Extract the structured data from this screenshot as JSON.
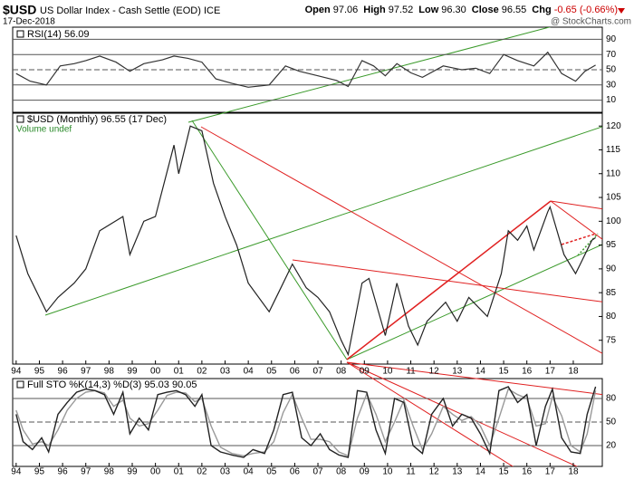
{
  "header": {
    "symbol": "$USD",
    "name": "US Dollar Index - Cash Settle (EOD) ICE",
    "date": "17-Dec-2018",
    "source": "@ StockCharts.com",
    "quote": [
      {
        "label": "Open",
        "value": "97.06"
      },
      {
        "label": "High",
        "value": "97.52"
      },
      {
        "label": "Low",
        "value": "96.30"
      },
      {
        "label": "Close",
        "value": "96.55"
      },
      {
        "label": "Chg",
        "value": "-0.65 (-0.66%)"
      }
    ]
  },
  "chart_data": [
    {
      "type": "line",
      "title": "RSI(14) 56.09",
      "color": "#333333",
      "x": [
        1994.0,
        1994.6,
        1995.3,
        1995.9,
        1996.5,
        1997.0,
        1997.6,
        1998.3,
        1998.9,
        1999.5,
        2000.3,
        2000.8,
        2001.4,
        2002.0,
        2002.6,
        2003.3,
        2004.0,
        2004.9,
        2005.6,
        2006.2,
        2007.0,
        2007.8,
        2008.3,
        2008.9,
        2009.4,
        2009.9,
        2010.4,
        2011.0,
        2011.5,
        2012.4,
        2013.2,
        2013.8,
        2014.4,
        2015.0,
        2015.6,
        2016.3,
        2016.9,
        2017.5,
        2018.1,
        2018.5,
        2018.96
      ],
      "values": [
        45,
        35,
        30,
        55,
        58,
        62,
        68,
        60,
        48,
        58,
        63,
        68,
        65,
        60,
        38,
        32,
        27,
        30,
        55,
        48,
        42,
        36,
        28,
        62,
        55,
        42,
        58,
        46,
        40,
        55,
        50,
        52,
        45,
        70,
        62,
        55,
        73,
        45,
        35,
        48,
        56.09
      ],
      "xlim": [
        1993.85,
        2019.25
      ],
      "ylim": [
        -6,
        106
      ],
      "yticks": [
        90,
        70,
        50,
        30,
        10
      ],
      "grid": true
    },
    {
      "type": "line",
      "title": "$USD (Monthly) 96.55 (17 Dec)",
      "legend": "Volume undef",
      "color": "#222222",
      "x": [
        1994.0,
        1994.5,
        1995.3,
        1995.8,
        1996.5,
        1997.0,
        1997.6,
        1998.6,
        1998.9,
        1999.5,
        2000.0,
        2000.8,
        2001.0,
        2001.5,
        2002.0,
        2002.5,
        2003.0,
        2003.5,
        2004.0,
        2004.9,
        2005.3,
        2005.9,
        2006.5,
        2007.0,
        2007.5,
        2008.0,
        2008.3,
        2008.9,
        2009.2,
        2009.9,
        2010.4,
        2010.9,
        2011.3,
        2011.7,
        2012.5,
        2013.0,
        2013.5,
        2014.3,
        2014.9,
        2015.2,
        2015.6,
        2016.0,
        2016.3,
        2016.9,
        2017.0,
        2017.6,
        2018.1,
        2018.3,
        2018.8,
        2018.96
      ],
      "values": [
        97,
        89,
        81,
        84,
        87,
        90,
        98,
        101,
        93,
        100,
        101,
        116,
        110,
        120,
        119,
        108,
        101,
        95,
        87,
        81,
        85,
        91,
        86,
        84,
        81,
        75,
        72,
        87,
        88,
        76,
        87,
        78,
        74,
        79,
        83,
        79,
        84,
        80,
        89,
        98,
        96,
        99,
        94,
        102,
        103,
        93,
        89,
        91,
        96,
        96.55
      ],
      "xlim": [
        1993.85,
        2019.25
      ],
      "ylim": [
        70,
        122.7
      ],
      "yticks": [
        75,
        80,
        85,
        90,
        95,
        100,
        105,
        110,
        115,
        120
      ],
      "grid": false,
      "xticks": [
        {
          "value": 1994,
          "label": "94"
        },
        {
          "value": 1995,
          "label": "95"
        },
        {
          "value": 1996,
          "label": "96"
        },
        {
          "value": 1997,
          "label": "97"
        },
        {
          "value": 1998,
          "label": "98"
        },
        {
          "value": 1999,
          "label": "99"
        },
        {
          "value": 2000,
          "label": "00"
        },
        {
          "value": 2001,
          "label": "01"
        },
        {
          "value": 2002,
          "label": "02"
        },
        {
          "value": 2003,
          "label": "03"
        },
        {
          "value": 2004,
          "label": "04"
        },
        {
          "value": 2005,
          "label": "05"
        },
        {
          "value": 2006,
          "label": "06"
        },
        {
          "value": 2007,
          "label": "07"
        },
        {
          "value": 2008,
          "label": "08"
        },
        {
          "value": 2009,
          "label": "09"
        },
        {
          "value": 2010,
          "label": "10"
        },
        {
          "value": 2011,
          "label": "11"
        },
        {
          "value": 2012,
          "label": "12"
        },
        {
          "value": 2013,
          "label": "13"
        },
        {
          "value": 2014,
          "label": "14"
        },
        {
          "value": 2015,
          "label": "15"
        },
        {
          "value": 2016,
          "label": "16"
        },
        {
          "value": 2017,
          "label": "17"
        },
        {
          "value": 2018,
          "label": "18"
        }
      ]
    },
    {
      "type": "line",
      "title": "Full STO %K(14,3) %D(3) 95.03 90.05",
      "x": [
        1994.0,
        1994.3,
        1994.7,
        1995.1,
        1995.4,
        1995.8,
        1996.2,
        1996.6,
        1997.0,
        1997.4,
        1997.8,
        1998.2,
        1998.6,
        1998.9,
        1999.3,
        1999.7,
        2000.1,
        2000.5,
        2000.9,
        2001.3,
        2001.7,
        2002.0,
        2002.4,
        2002.8,
        2003.3,
        2003.8,
        2004.2,
        2004.7,
        2005.1,
        2005.5,
        2005.9,
        2006.3,
        2006.7,
        2007.1,
        2007.5,
        2007.9,
        2008.3,
        2008.7,
        2009.1,
        2009.5,
        2009.9,
        2010.3,
        2010.7,
        2011.1,
        2011.5,
        2011.9,
        2012.4,
        2012.8,
        2013.2,
        2013.6,
        2014.0,
        2014.4,
        2014.8,
        2015.2,
        2015.6,
        2016.0,
        2016.4,
        2016.8,
        2017.1,
        2017.5,
        2017.9,
        2018.3,
        2018.6,
        2018.96
      ],
      "series": [
        {
          "color": "#222222",
          "values": [
            60,
            25,
            15,
            30,
            12,
            60,
            75,
            88,
            92,
            90,
            85,
            60,
            88,
            35,
            55,
            40,
            85,
            88,
            90,
            85,
            70,
            85,
            20,
            12,
            8,
            5,
            15,
            10,
            40,
            85,
            88,
            30,
            20,
            35,
            15,
            8,
            5,
            90,
            88,
            40,
            10,
            80,
            75,
            20,
            10,
            60,
            80,
            45,
            60,
            55,
            35,
            10,
            90,
            95,
            75,
            85,
            20,
            70,
            92,
            30,
            12,
            10,
            60,
            95.03
          ]
        },
        {
          "color": "#999999",
          "values": [
            65,
            40,
            22,
            25,
            20,
            40,
            65,
            80,
            88,
            90,
            87,
            70,
            78,
            55,
            45,
            48,
            65,
            84,
            88,
            87,
            76,
            80,
            45,
            18,
            10,
            7,
            10,
            12,
            25,
            62,
            85,
            55,
            28,
            28,
            25,
            12,
            7,
            55,
            86,
            60,
            25,
            50,
            78,
            45,
            15,
            35,
            70,
            60,
            52,
            57,
            45,
            20,
            55,
            92,
            85,
            80,
            45,
            48,
            82,
            58,
            20,
            12,
            35,
            90.05
          ]
        }
      ],
      "xlim": [
        1993.85,
        2019.25
      ],
      "ylim": [
        -6.5,
        105.4
      ],
      "yticks": [
        80,
        50,
        20
      ],
      "grid": true,
      "xticks": [
        {
          "value": 1994,
          "label": "94"
        },
        {
          "value": 1995,
          "label": "95"
        },
        {
          "value": 1996,
          "label": "96"
        },
        {
          "value": 1997,
          "label": "97"
        },
        {
          "value": 1998,
          "label": "98"
        },
        {
          "value": 1999,
          "label": "99"
        },
        {
          "value": 2000,
          "label": "00"
        },
        {
          "value": 2001,
          "label": "01"
        },
        {
          "value": 2002,
          "label": "02"
        },
        {
          "value": 2003,
          "label": "03"
        },
        {
          "value": 2004,
          "label": "04"
        },
        {
          "value": 2005,
          "label": "05"
        },
        {
          "value": 2006,
          "label": "06"
        },
        {
          "value": 2007,
          "label": "07"
        },
        {
          "value": 2008,
          "label": "08"
        },
        {
          "value": 2009,
          "label": "09"
        },
        {
          "value": 2010,
          "label": "10"
        },
        {
          "value": 2011,
          "label": "11"
        },
        {
          "value": 2012,
          "label": "12"
        },
        {
          "value": 2013,
          "label": "13"
        },
        {
          "value": 2014,
          "label": "14"
        },
        {
          "value": 2015,
          "label": "15"
        },
        {
          "value": 2016,
          "label": "16"
        },
        {
          "value": 2017,
          "label": "17"
        },
        {
          "value": 2018,
          "label": "18"
        }
      ]
    }
  ]
}
